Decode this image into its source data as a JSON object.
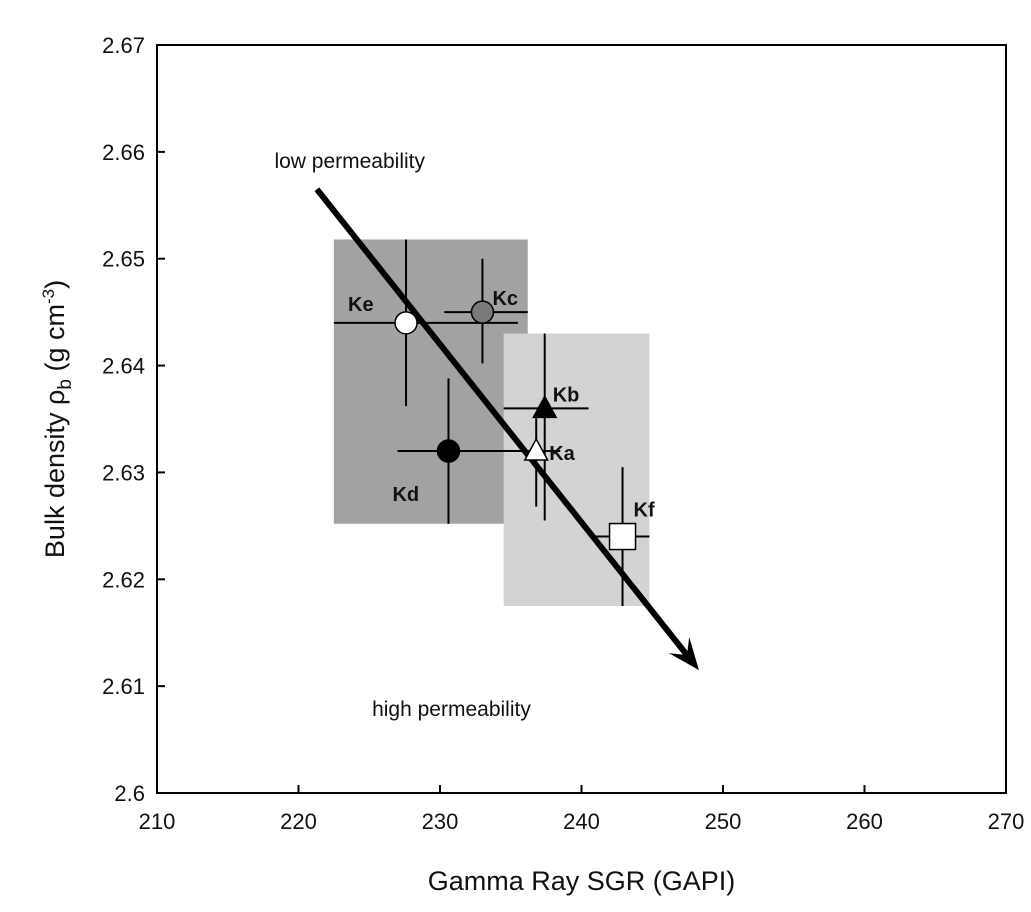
{
  "chart_data": {
    "type": "scatter",
    "title": "",
    "xlabel": "Gamma Ray SGR (GAPI)",
    "ylabel": {
      "main": "Bulk density ",
      "rho": "ρ",
      "rho_sub": "b",
      "unit_open": " (g cm",
      "unit_exp": "-3",
      "unit_close": ")"
    },
    "xlim": [
      210,
      270
    ],
    "ylim": [
      2.6,
      2.67
    ],
    "xticks": [
      210,
      220,
      230,
      240,
      250,
      260,
      270
    ],
    "yticks": [
      2.6,
      2.61,
      2.62,
      2.63,
      2.64,
      2.65,
      2.66,
      2.67
    ],
    "ytick_labels": [
      "2.6",
      "2.61",
      "2.62",
      "2.63",
      "2.64",
      "2.65",
      "2.66",
      "2.67"
    ],
    "grid": false,
    "colors": {
      "dark_region": "#a2a2a2",
      "light_region": "#d3d3d3",
      "dark_gray_point": "#7a7a7a",
      "black": "#000000",
      "white": "#ffffff"
    },
    "regions": [
      {
        "shade": "dark",
        "x": [
          222.5,
          236.2
        ],
        "y": [
          2.6252,
          2.6518
        ]
      },
      {
        "shade": "light",
        "x": [
          234.5,
          244.8
        ],
        "y": [
          2.6175,
          2.643
        ]
      }
    ],
    "points": [
      {
        "label": "Ke",
        "x": 227.6,
        "y": 2.644,
        "xerr": [
          222.5,
          235.5
        ],
        "yerr": [
          2.6362,
          2.6518
        ],
        "marker": "circle",
        "fill": "white"
      },
      {
        "label": "Kc",
        "x": 233.0,
        "y": 2.645,
        "xerr": [
          230.3,
          236.2
        ],
        "yerr": [
          2.6402,
          2.65
        ],
        "marker": "circle",
        "fill": "dark_gray"
      },
      {
        "label": "Kb",
        "x": 237.4,
        "y": 2.636,
        "xerr": [
          234.5,
          240.5
        ],
        "yerr": [
          2.6255,
          2.643
        ],
        "marker": "triangle",
        "fill": "black"
      },
      {
        "label": "Ka",
        "x": 236.8,
        "y": 2.632,
        "xerr": [
          234.5,
          238.5
        ],
        "yerr": [
          2.6268,
          2.6352
        ],
        "marker": "triangle",
        "fill": "white"
      },
      {
        "label": "Kd",
        "x": 230.6,
        "y": 2.632,
        "xerr": [
          227.0,
          235.0
        ],
        "yerr": [
          2.6252,
          2.6388
        ],
        "marker": "circle",
        "fill": "black"
      },
      {
        "label": "Kf",
        "x": 242.9,
        "y": 2.624,
        "xerr": [
          241.0,
          244.8
        ],
        "yerr": [
          2.6175,
          2.6305
        ],
        "marker": "square",
        "fill": "white"
      }
    ],
    "arrow": {
      "from": [
        221.3,
        2.6565
      ],
      "to": [
        248.3,
        2.6115
      ]
    },
    "annotations": [
      {
        "text": "low permeability",
        "x": 218.3,
        "y": 2.6585
      },
      {
        "text": "high permeability",
        "x": 225.2,
        "y": 2.6072
      }
    ]
  }
}
